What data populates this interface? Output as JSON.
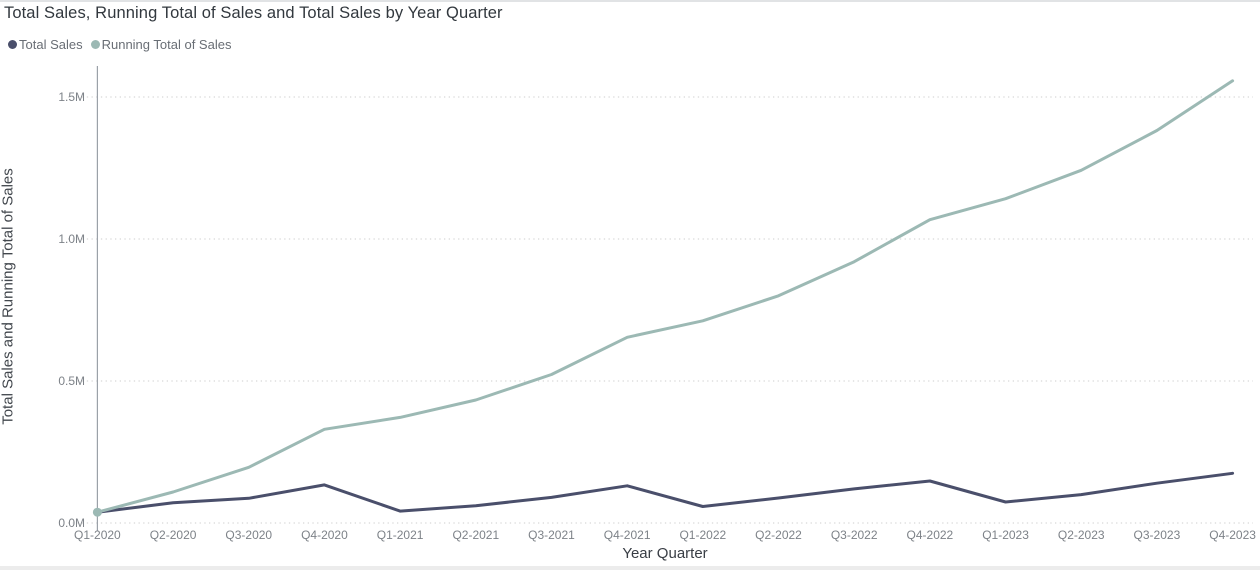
{
  "header": {
    "title": "Total Sales, Running Total of Sales and Total Sales by Year Quarter"
  },
  "legend": {
    "items": [
      {
        "label": "Total Sales",
        "color": "#4a4f6b"
      },
      {
        "label": "Running Total of Sales",
        "color": "#9cb9b4"
      }
    ]
  },
  "chart_data": {
    "type": "line",
    "title": "Total Sales, Running Total of Sales and Total Sales by Year Quarter",
    "xlabel": "Year Quarter",
    "ylabel": "Total Sales and Running Total of Sales",
    "categories": [
      "Q1-2020",
      "Q2-2020",
      "Q3-2020",
      "Q4-2020",
      "Q1-2021",
      "Q2-2021",
      "Q3-2021",
      "Q4-2021",
      "Q1-2022",
      "Q2-2022",
      "Q3-2022",
      "Q4-2022",
      "Q1-2023",
      "Q2-2023",
      "Q3-2023",
      "Q4-2023"
    ],
    "series": [
      {
        "name": "Total Sales",
        "color": "#4a4f6b",
        "unit": "millions",
        "values": [
          0.038,
          0.071,
          0.087,
          0.134,
          0.042,
          0.061,
          0.09,
          0.131,
          0.058,
          0.088,
          0.12,
          0.148,
          0.074,
          0.1,
          0.14,
          0.175
        ]
      },
      {
        "name": "Running Total of Sales",
        "color": "#9cb9b4",
        "unit": "millions",
        "values": [
          0.038,
          0.109,
          0.196,
          0.33,
          0.372,
          0.433,
          0.523,
          0.654,
          0.712,
          0.8,
          0.92,
          1.068,
          1.142,
          1.242,
          1.382,
          1.557
        ]
      }
    ],
    "y_ticks": [
      {
        "label": "0.0M",
        "value": 0.0
      },
      {
        "label": "0.5M",
        "value": 0.5
      },
      {
        "label": "1.0M",
        "value": 1.0
      },
      {
        "label": "1.5M",
        "value": 1.5
      }
    ],
    "ylim": [
      0,
      1.61
    ],
    "grid": "horizontal-dotted",
    "legend_position": "top-left",
    "first_point_marker": "circle on first data point of Running Total of Sales",
    "colors": {
      "gridline": "#d8d8d8",
      "axis_line": "#9ba1a8",
      "tick_text": "#7d8288",
      "axis_title_text": "#42474d",
      "title_text": "#32383e"
    }
  }
}
